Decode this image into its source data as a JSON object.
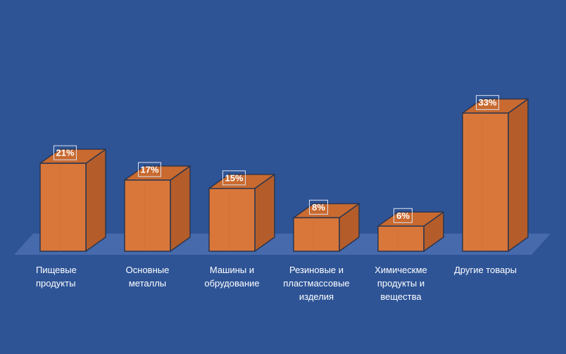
{
  "chart_data": {
    "type": "bar",
    "categories": [
      "Пищевые\nпродукты",
      "Основные\nметаллы",
      "Машины и\nобрудование",
      "Резиновые и\nпластмассовые\nизделия",
      "Химическме\nпродукты и\nвещества",
      "Другие товары"
    ],
    "values": [
      21,
      17,
      15,
      8,
      6,
      33
    ],
    "data_labels": [
      "21%",
      "17%",
      "15%",
      "8%",
      "6%",
      "33%"
    ],
    "unit": "%",
    "title": "",
    "xlabel": "",
    "ylabel": "",
    "ylim": [
      0,
      40
    ],
    "grid": false,
    "legend": "none",
    "style": "3d-column"
  },
  "colors": {
    "background": "#2e5496",
    "floor": "#4a6fb0",
    "bar_front": "#d9773a",
    "bar_top": "#c96a30",
    "bar_side": "#b45d2a",
    "bar_outline": "#2b3650",
    "label_text": "#ffffff"
  }
}
